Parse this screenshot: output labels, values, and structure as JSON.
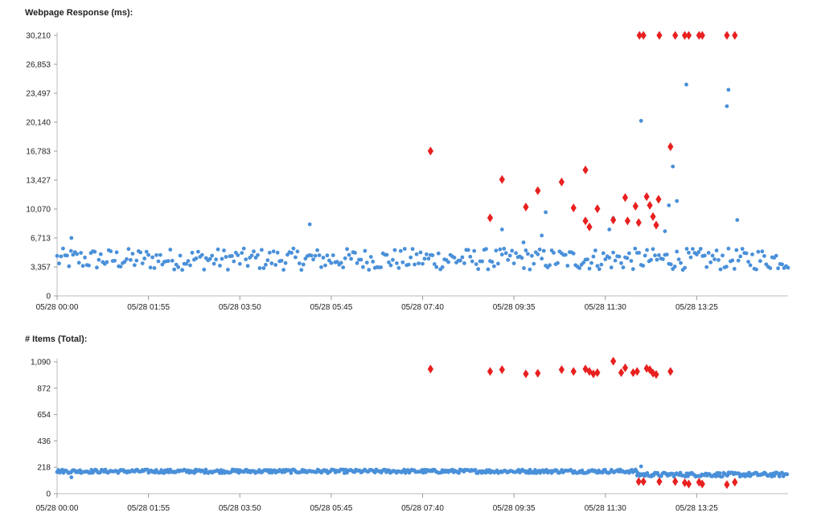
{
  "chart_data": [
    {
      "type": "scatter",
      "title": "Webpage Response (ms):",
      "ylim": [
        0,
        30210
      ],
      "y_ticks": [
        0,
        3357,
        6713,
        10070,
        13427,
        16783,
        20140,
        23497,
        26853,
        30210
      ],
      "y_tick_labels": [
        "0",
        "3,357",
        "6,713",
        "10,070",
        "13,427",
        "16,783",
        "20,140",
        "23,497",
        "26,853",
        "30,210"
      ],
      "x_tick_labels": [
        "05/28 00:00",
        "05/28 01:55",
        "05/28 03:50",
        "05/28 05:45",
        "05/28 07:40",
        "05/28 09:35",
        "05/28 11:30",
        "05/28 13:25"
      ],
      "x_tick_minutes": [
        0,
        115,
        230,
        345,
        460,
        575,
        690,
        805
      ],
      "xlim_minutes": [
        0,
        920
      ],
      "grid": false,
      "series": [
        {
          "marker": "circle",
          "color": "#4a90d9",
          "baseline_range": [
            3000,
            5500
          ],
          "noise_range_minutes": [
            0,
            920
          ],
          "extra_points": [
            {
              "x": 18,
              "y": 6713
            },
            {
              "x": 318,
              "y": 8300
            },
            {
              "x": 560,
              "y": 7700
            },
            {
              "x": 587,
              "y": 6200
            },
            {
              "x": 610,
              "y": 7000
            },
            {
              "x": 615,
              "y": 9700
            },
            {
              "x": 695,
              "y": 7700
            },
            {
              "x": 700,
              "y": 9000
            },
            {
              "x": 735,
              "y": 20300
            },
            {
              "x": 765,
              "y": 7500
            },
            {
              "x": 770,
              "y": 10500
            },
            {
              "x": 775,
              "y": 15000
            },
            {
              "x": 780,
              "y": 11000
            },
            {
              "x": 792,
              "y": 24500
            },
            {
              "x": 843,
              "y": 22000
            },
            {
              "x": 845,
              "y": 23900
            },
            {
              "x": 856,
              "y": 8800
            }
          ]
        },
        {
          "marker": "diamond",
          "color": "#e8201f",
          "points": [
            {
              "x": 470,
              "y": 16800
            },
            {
              "x": 545,
              "y": 9050
            },
            {
              "x": 560,
              "y": 13500
            },
            {
              "x": 590,
              "y": 10300
            },
            {
              "x": 605,
              "y": 12200
            },
            {
              "x": 635,
              "y": 13200
            },
            {
              "x": 650,
              "y": 10200
            },
            {
              "x": 665,
              "y": 14600
            },
            {
              "x": 665,
              "y": 8700
            },
            {
              "x": 670,
              "y": 8000
            },
            {
              "x": 680,
              "y": 10100
            },
            {
              "x": 700,
              "y": 8800
            },
            {
              "x": 715,
              "y": 11400
            },
            {
              "x": 718,
              "y": 8700
            },
            {
              "x": 728,
              "y": 10400
            },
            {
              "x": 732,
              "y": 8500
            },
            {
              "x": 742,
              "y": 11500
            },
            {
              "x": 746,
              "y": 10500
            },
            {
              "x": 750,
              "y": 9200
            },
            {
              "x": 754,
              "y": 8200
            },
            {
              "x": 757,
              "y": 11200
            },
            {
              "x": 772,
              "y": 17300
            },
            {
              "x": 733,
              "y": 30210
            },
            {
              "x": 738,
              "y": 30210
            },
            {
              "x": 758,
              "y": 30210
            },
            {
              "x": 778,
              "y": 30210
            },
            {
              "x": 790,
              "y": 30210
            },
            {
              "x": 795,
              "y": 30210
            },
            {
              "x": 808,
              "y": 30210
            },
            {
              "x": 812,
              "y": 30210
            },
            {
              "x": 843,
              "y": 30210
            },
            {
              "x": 853,
              "y": 30210
            }
          ]
        }
      ]
    },
    {
      "type": "scatter",
      "title": "# Items (Total):",
      "ylim": [
        0,
        1090
      ],
      "y_ticks": [
        0,
        218,
        436,
        654,
        872,
        1090
      ],
      "y_tick_labels": [
        "0",
        "218",
        "436",
        "654",
        "872",
        "1,090"
      ],
      "x_tick_labels": [
        "05/28 00:00",
        "05/28 01:55",
        "05/28 03:50",
        "05/28 05:45",
        "05/28 07:40",
        "05/28 09:35",
        "05/28 11:30",
        "05/28 13:25"
      ],
      "x_tick_minutes": [
        0,
        115,
        230,
        345,
        460,
        575,
        690,
        805
      ],
      "xlim_minutes": [
        0,
        920
      ],
      "grid": false,
      "series": [
        {
          "marker": "circle",
          "color": "#4a90d9",
          "baseline_segments": [
            {
              "from": 0,
              "to": 730,
              "range": [
                170,
                200
              ]
            },
            {
              "from": 730,
              "to": 920,
              "range": [
                140,
                175
              ]
            }
          ],
          "extra_points": [
            {
              "x": 18,
              "y": 135
            },
            {
              "x": 735,
              "y": 225
            }
          ]
        },
        {
          "marker": "diamond",
          "color": "#e8201f",
          "points": [
            {
              "x": 470,
              "y": 1030
            },
            {
              "x": 545,
              "y": 1010
            },
            {
              "x": 560,
              "y": 1025
            },
            {
              "x": 590,
              "y": 990
            },
            {
              "x": 605,
              "y": 995
            },
            {
              "x": 635,
              "y": 1025
            },
            {
              "x": 650,
              "y": 1010
            },
            {
              "x": 665,
              "y": 1030
            },
            {
              "x": 670,
              "y": 1010
            },
            {
              "x": 675,
              "y": 990
            },
            {
              "x": 680,
              "y": 1000
            },
            {
              "x": 700,
              "y": 1095
            },
            {
              "x": 710,
              "y": 1000
            },
            {
              "x": 715,
              "y": 1040
            },
            {
              "x": 725,
              "y": 1000
            },
            {
              "x": 730,
              "y": 1010
            },
            {
              "x": 742,
              "y": 1035
            },
            {
              "x": 746,
              "y": 1025
            },
            {
              "x": 750,
              "y": 995
            },
            {
              "x": 754,
              "y": 985
            },
            {
              "x": 772,
              "y": 1010
            },
            {
              "x": 732,
              "y": 100
            },
            {
              "x": 738,
              "y": 100
            },
            {
              "x": 758,
              "y": 100
            },
            {
              "x": 778,
              "y": 100
            },
            {
              "x": 790,
              "y": 90
            },
            {
              "x": 795,
              "y": 80
            },
            {
              "x": 808,
              "y": 95
            },
            {
              "x": 812,
              "y": 80
            },
            {
              "x": 843,
              "y": 75
            },
            {
              "x": 853,
              "y": 95
            }
          ]
        }
      ]
    }
  ]
}
